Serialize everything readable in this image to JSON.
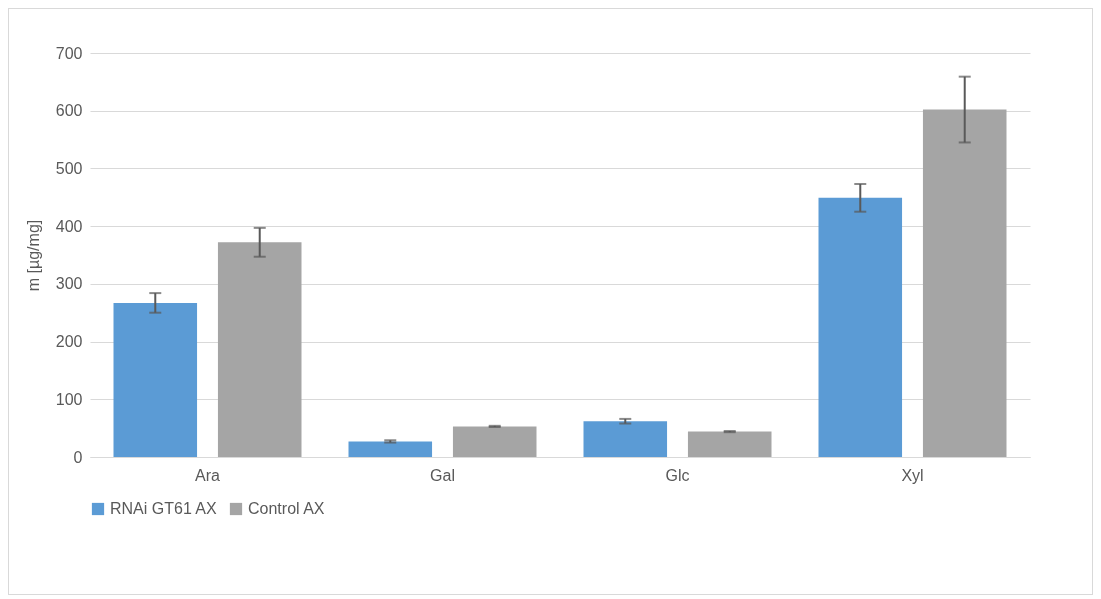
{
  "chart_data": {
    "type": "bar",
    "ylabel": "m [µg/mg]",
    "categories": [
      "Ara",
      "Gal",
      "Glc",
      "Xyl"
    ],
    "series": [
      {
        "name": "RNAi GT61 AX",
        "color": "#5b9bd5",
        "values": [
          267,
          27,
          62,
          449
        ],
        "errors": [
          17,
          2,
          4,
          24
        ]
      },
      {
        "name": "Control AX",
        "color": "#a5a5a5",
        "values": [
          372,
          53,
          44,
          602
        ],
        "errors": [
          25,
          1,
          1,
          57
        ]
      }
    ],
    "ylim": [
      0,
      700
    ],
    "yticks": [
      0,
      100,
      200,
      300,
      400,
      500,
      600,
      700
    ],
    "grid": "y",
    "legend": "bottom"
  }
}
